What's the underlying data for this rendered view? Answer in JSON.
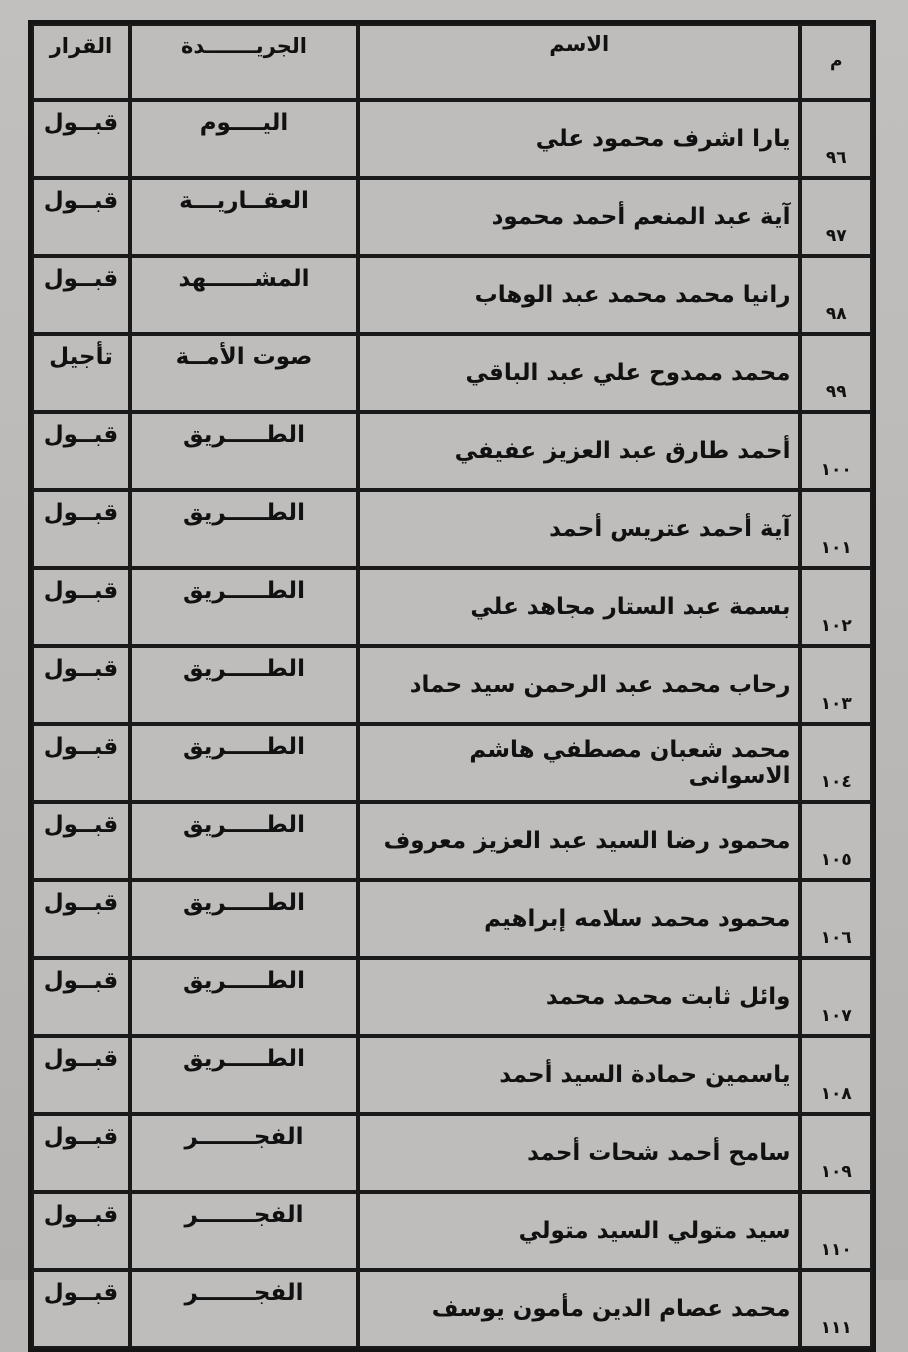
{
  "table": {
    "headers": {
      "number": "م",
      "name": "الاسم",
      "newspaper": "الجريـــــــدة",
      "decision": "القرار"
    },
    "rows": [
      {
        "number": "٩٦",
        "name": "يارا اشرف محمود علي",
        "newspaper": "اليــــوم",
        "decision": "قبــول"
      },
      {
        "number": "٩٧",
        "name": "آية عبد المنعم أحمد محمود",
        "newspaper": "العقــاريـــة",
        "decision": "قبــول"
      },
      {
        "number": "٩٨",
        "name": "رانيا محمد محمد عبد الوهاب",
        "newspaper": "المشــــــهد",
        "decision": "قبــول"
      },
      {
        "number": "٩٩",
        "name": "محمد ممدوح علي عبد الباقي",
        "newspaper": "صوت الأمــة",
        "decision": "تأجيل"
      },
      {
        "number": "١٠٠",
        "name": "أحمد طارق عبد العزيز عفيفي",
        "newspaper": "الطـــــريق",
        "decision": "قبــول"
      },
      {
        "number": "١٠١",
        "name": "آية أحمد عتريس أحمد",
        "newspaper": "الطـــــريق",
        "decision": "قبــول"
      },
      {
        "number": "١٠٢",
        "name": "بسمة عبد الستار مجاهد علي",
        "newspaper": "الطـــــريق",
        "decision": "قبــول"
      },
      {
        "number": "١٠٣",
        "name": "رحاب محمد عبد الرحمن سيد حماد",
        "newspaper": "الطـــــريق",
        "decision": "قبــول"
      },
      {
        "number": "١٠٤",
        "name": "محمد شعبان مصطفي هاشم الاسوانى",
        "newspaper": "الطـــــريق",
        "decision": "قبــول"
      },
      {
        "number": "١٠٥",
        "name": "محمود رضا السيد عبد العزيز معروف",
        "newspaper": "الطـــــريق",
        "decision": "قبــول"
      },
      {
        "number": "١٠٦",
        "name": "محمود محمد سلامه إبراهيم",
        "newspaper": "الطـــــريق",
        "decision": "قبــول"
      },
      {
        "number": "١٠٧",
        "name": "وائل ثابت محمد محمد",
        "newspaper": "الطـــــريق",
        "decision": "قبــول"
      },
      {
        "number": "١٠٨",
        "name": "ياسمين حمادة السيد أحمد",
        "newspaper": "الطـــــريق",
        "decision": "قبــول"
      },
      {
        "number": "١٠٩",
        "name": "سامح أحمد شحات أحمد",
        "newspaper": "الفجـــــــر",
        "decision": "قبــول"
      },
      {
        "number": "١١٠",
        "name": "سيد متولي السيد متولي",
        "newspaper": "الفجـــــــر",
        "decision": "قبــول"
      },
      {
        "number": "١١١",
        "name": "محمد عصام الدين مأمون يوسف",
        "newspaper": "الفجـــــــر",
        "decision": "قبــول"
      }
    ]
  }
}
